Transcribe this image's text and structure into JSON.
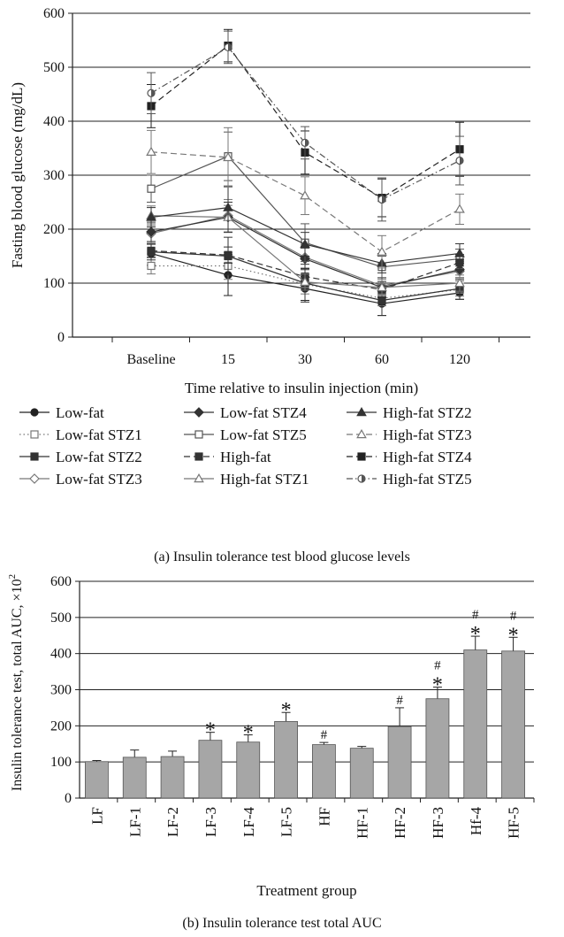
{
  "chart_data": [
    {
      "type": "line",
      "caption": "(a)  Insulin tolerance test blood glucose levels",
      "title": "",
      "xlabel": "Time relative to insulin injection (min)",
      "ylabel": "Fasting blood glucose (mg/dL)",
      "x": [
        "Baseline",
        "15",
        "30",
        "60",
        "120"
      ],
      "ylim": [
        0,
        600
      ],
      "yticks": [
        0,
        100,
        200,
        300,
        400,
        500,
        600
      ],
      "grid": true,
      "legend_position": "bottom",
      "series": [
        {
          "name": "Low-fat",
          "values": [
            155,
            115,
            90,
            62,
            82
          ],
          "marker": "circle",
          "fill": "filled",
          "dash": "solid",
          "color": "#222222",
          "err": [
            22,
            38,
            22,
            22,
            12
          ]
        },
        {
          "name": "Low-fat STZ1",
          "values": [
            132,
            132,
            98,
            72,
            88
          ],
          "marker": "square",
          "fill": "open",
          "dash": "dotted",
          "color": "#777777",
          "err": [
            15,
            25,
            18,
            14,
            12
          ]
        },
        {
          "name": "Low-fat STZ2",
          "values": [
            158,
            150,
            100,
            68,
            90
          ],
          "marker": "square",
          "fill": "filled",
          "dash": "solid",
          "color": "#333333",
          "err": [
            15,
            35,
            35,
            28,
            20
          ]
        },
        {
          "name": "Low-fat STZ3",
          "values": [
            192,
            225,
            148,
            95,
            122
          ],
          "marker": "diamond",
          "fill": "open",
          "dash": "solid",
          "color": "#777777",
          "err": [
            18,
            30,
            20,
            15,
            18
          ]
        },
        {
          "name": "Low-fat STZ4",
          "values": [
            195,
            222,
            145,
            92,
            125
          ],
          "marker": "diamond",
          "fill": "filled",
          "dash": "solid",
          "color": "#333333",
          "err": [
            18,
            28,
            20,
            18,
            18
          ]
        },
        {
          "name": "Low-fat STZ5",
          "values": [
            275,
            335,
            175,
            130,
            145
          ],
          "marker": "square",
          "fill": "open",
          "dash": "solid",
          "color": "#555555",
          "err": [
            25,
            45,
            35,
            20,
            18
          ]
        },
        {
          "name": "High-fat",
          "values": [
            160,
            152,
            112,
            88,
            138
          ],
          "marker": "square",
          "fill": "filled",
          "dash": "dashed",
          "color": "#333333",
          "err": [
            12,
            15,
            15,
            15,
            15
          ]
        },
        {
          "name": "High-fat STZ1",
          "values": [
            225,
            222,
            102,
            92,
            100
          ],
          "marker": "triangle",
          "fill": "open",
          "dash": "solid",
          "color": "#777777",
          "err": [
            18,
            22,
            15,
            15,
            15
          ]
        },
        {
          "name": "High-fat STZ2",
          "values": [
            222,
            240,
            172,
            137,
            155
          ],
          "marker": "triangle",
          "fill": "filled",
          "dash": "solid",
          "color": "#333333",
          "err": [
            18,
            40,
            22,
            18,
            18
          ]
        },
        {
          "name": "High-fat STZ3",
          "values": [
            343,
            333,
            262,
            158,
            237
          ],
          "marker": "triangle",
          "fill": "open",
          "dash": "dashed",
          "color": "#777777",
          "err": [
            40,
            55,
            35,
            30,
            28
          ]
        },
        {
          "name": "High-fat STZ4",
          "values": [
            428,
            540,
            342,
            258,
            348
          ],
          "marker": "square",
          "fill": "filled",
          "dash": "dashed",
          "color": "#222222",
          "err": [
            40,
            30,
            40,
            35,
            50
          ]
        },
        {
          "name": "High-fat STZ5",
          "values": [
            452,
            537,
            360,
            255,
            327
          ],
          "marker": "circle",
          "fill": "half",
          "dash": "dashdot",
          "color": "#555555",
          "err": [
            38,
            30,
            30,
            40,
            45
          ]
        }
      ]
    },
    {
      "type": "bar",
      "caption": "(b)  Insulin tolerance test total AUC",
      "title": "",
      "xlabel": "Treatment group",
      "ylabel": "Insulin tolerance test, total AUC, ×10",
      "ylabel_sup": "2",
      "categories": [
        "LF",
        "LF-1",
        "LF-2",
        "LF-3",
        "LF-4",
        "LF-5",
        "HF",
        "HF-1",
        "HF-2",
        "HF-3",
        "Hf-4",
        "HF-5"
      ],
      "values": [
        101,
        113,
        115,
        160,
        155,
        212,
        148,
        138,
        198,
        275,
        410,
        407
      ],
      "err": [
        3,
        20,
        15,
        22,
        20,
        25,
        6,
        5,
        52,
        32,
        38,
        38
      ],
      "annotations": [
        "",
        "",
        "",
        "*",
        "*",
        "*",
        "#",
        "",
        "#",
        "#\n*",
        "#\n*",
        "#\n*"
      ],
      "ylim": [
        0,
        600
      ],
      "yticks": [
        0,
        100,
        200,
        300,
        400,
        500,
        600
      ],
      "grid": true,
      "bar_color": "#a6a6a6"
    }
  ]
}
